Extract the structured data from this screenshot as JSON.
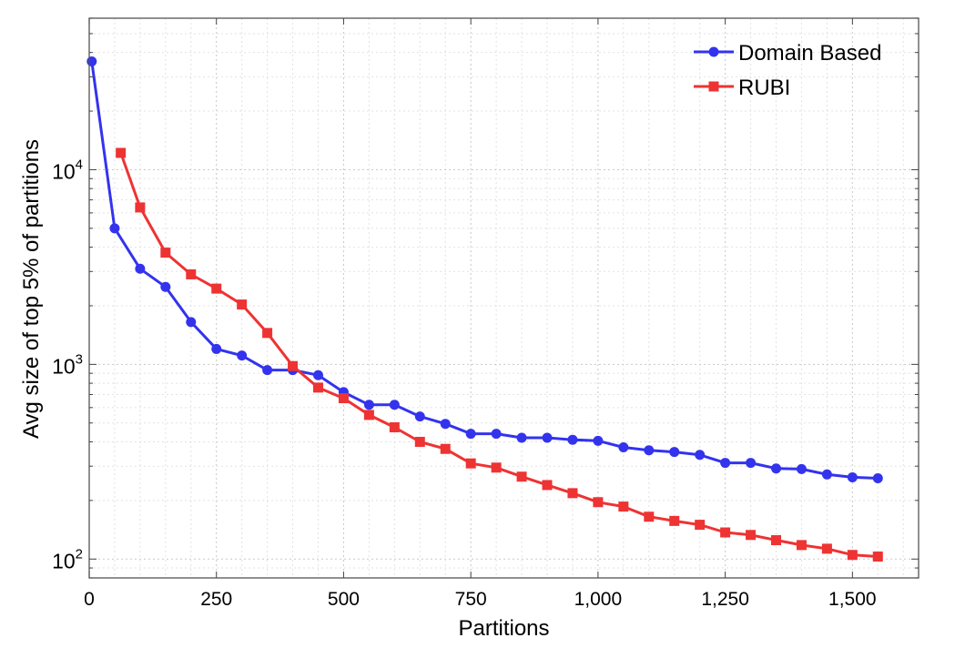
{
  "chart_data": {
    "type": "line",
    "title": "",
    "xlabel": "Partitions",
    "ylabel": "Avg size of top 5% of partitions",
    "xlim": [
      0,
      1630
    ],
    "ylim": [
      80,
      60000
    ],
    "yscale": "log",
    "grid": true,
    "legend_position": "top-right",
    "x_ticks": [
      {
        "value": 0,
        "label": "0"
      },
      {
        "value": 250,
        "label": "250"
      },
      {
        "value": 500,
        "label": "500"
      },
      {
        "value": 750,
        "label": "750"
      },
      {
        "value": 1000,
        "label": "1,000"
      },
      {
        "value": 1250,
        "label": "1,250"
      },
      {
        "value": 1500,
        "label": "1,500"
      }
    ],
    "y_ticks": [
      {
        "value": 100,
        "base": "10",
        "exp": "2"
      },
      {
        "value": 1000,
        "base": "10",
        "exp": "3"
      },
      {
        "value": 10000,
        "base": "10",
        "exp": "4"
      }
    ],
    "series": [
      {
        "name": "Domain Based",
        "color": "#3333ee",
        "marker": "circle",
        "x": [
          5,
          50,
          100,
          150,
          200,
          250,
          300,
          350,
          400,
          450,
          500,
          550,
          600,
          650,
          700,
          750,
          800,
          850,
          900,
          950,
          1000,
          1050,
          1100,
          1150,
          1200,
          1250,
          1300,
          1350,
          1400,
          1450,
          1500,
          1550
        ],
        "values": [
          36000,
          5000,
          3100,
          2500,
          1650,
          1200,
          1110,
          935,
          935,
          880,
          720,
          620,
          620,
          540,
          495,
          440,
          440,
          420,
          420,
          410,
          405,
          375,
          362,
          355,
          343,
          312,
          312,
          292,
          290,
          272,
          263,
          260
        ]
      },
      {
        "name": "RUBI",
        "color": "#ee3333",
        "marker": "square",
        "x": [
          62,
          100,
          150,
          200,
          250,
          300,
          350,
          400,
          450,
          500,
          550,
          600,
          650,
          700,
          750,
          800,
          850,
          900,
          950,
          1000,
          1050,
          1100,
          1150,
          1200,
          1250,
          1300,
          1350,
          1400,
          1450,
          1500,
          1550
        ],
        "values": [
          12200,
          6400,
          3750,
          2900,
          2450,
          2030,
          1450,
          980,
          760,
          670,
          550,
          475,
          400,
          368,
          310,
          295,
          265,
          240,
          218,
          196,
          186,
          165,
          157,
          150,
          137,
          133,
          125,
          118,
          113,
          105,
          103
        ]
      }
    ]
  }
}
